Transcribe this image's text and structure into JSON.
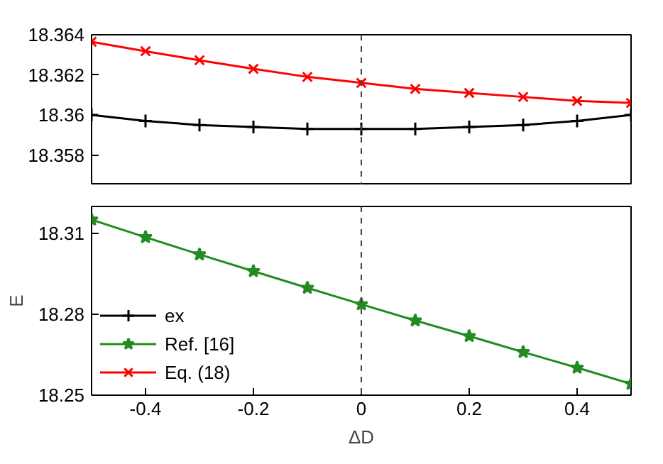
{
  "chart_data": [
    {
      "type": "line",
      "x": [
        -0.5,
        -0.4,
        -0.3,
        -0.2,
        -0.1,
        0,
        0.1,
        0.2,
        0.3,
        0.4,
        0.5
      ],
      "xlim": [
        -0.5,
        0.5
      ],
      "ylim": [
        18.3565,
        18.364
      ],
      "yticks": [
        18.358,
        {
          "value": 18.36,
          "label": "18.36"
        },
        18.362,
        18.364
      ],
      "tick_labels": "y",
      "grid": false,
      "legend": "bottom left",
      "ref_lines": [
        {
          "axis": "x",
          "value": 0,
          "line_style": "dashed",
          "color": "#444444"
        }
      ],
      "series": [
        {
          "name": "ex",
          "color": "#000000",
          "marker": "cross",
          "values": [
            18.36,
            18.3597,
            18.3595,
            18.3594,
            18.3593,
            18.3593,
            18.3593,
            18.3594,
            18.3595,
            18.3597,
            18.36
          ]
        },
        {
          "name": "Eq. (18)",
          "color": "#ff0000",
          "marker": "x",
          "values": [
            18.36365,
            18.36318,
            18.36273,
            18.3623,
            18.3619,
            18.3616,
            18.3613,
            18.3611,
            18.3609,
            18.3607,
            18.3606
          ]
        }
      ]
    },
    {
      "type": "line",
      "x": [
        -0.5,
        -0.4,
        -0.3,
        -0.2,
        -0.1,
        0,
        0.1,
        0.2,
        0.3,
        0.4,
        0.5
      ],
      "xlim": [
        -0.5,
        0.5
      ],
      "xticks": [
        -0.4,
        -0.2,
        0,
        0.2,
        0.4
      ],
      "ylim": [
        18.25,
        18.32
      ],
      "yticks": [
        18.25,
        18.28,
        18.31
      ],
      "xlabel": "ΔD",
      "ylabel": "E",
      "grid": false,
      "legend": "bottom left",
      "ref_lines": [
        {
          "axis": "x",
          "value": 0,
          "line_style": "dashed",
          "color": "#444444"
        }
      ],
      "series": [
        {
          "name": "Ref. [16]",
          "color": "#228b22",
          "marker": "star",
          "values": [
            18.3151,
            18.3086,
            18.3022,
            18.296,
            18.2898,
            18.2837,
            18.2777,
            18.2719,
            18.266,
            18.2602,
            18.2542
          ]
        }
      ]
    }
  ]
}
